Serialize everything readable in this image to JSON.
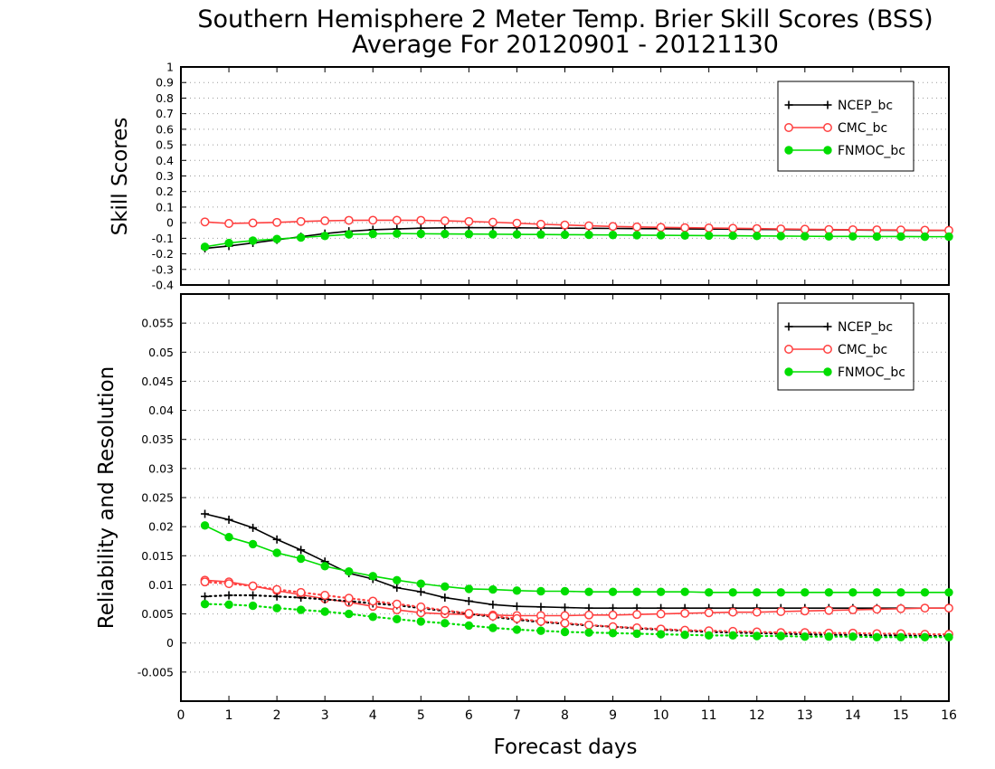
{
  "chart_data": {
    "title": "Southern Hemisphere 2 Meter Temp. Brier Skill Scores (BSS)",
    "subtitle": "Average For 20120901 - 20121130",
    "xlabel": "Forecast days",
    "x_ticks": [
      "0",
      "1",
      "2",
      "3",
      "4",
      "5",
      "6",
      "7",
      "8",
      "9",
      "10",
      "11",
      "12",
      "13",
      "14",
      "15",
      "16"
    ],
    "x": [
      0.5,
      1,
      1.5,
      2,
      2.5,
      3,
      3.5,
      4,
      4.5,
      5,
      5.5,
      6,
      6.5,
      7,
      7.5,
      8,
      8.5,
      9,
      9.5,
      10,
      10.5,
      11,
      11.5,
      12,
      12.5,
      13,
      13.5,
      14,
      14.5,
      15,
      15.5,
      16
    ],
    "xlim": [
      0,
      16
    ],
    "panels": [
      {
        "type": "line",
        "ylabel": "Skill Scores",
        "ylim": [
          -0.4,
          1
        ],
        "y_ticks": [
          "-0.4",
          "-0.3",
          "-0.2",
          "-0.1",
          "0",
          "0.1",
          "0.2",
          "0.3",
          "0.4",
          "0.5",
          "0.6",
          "0.7",
          "0.8",
          "0.9",
          "1"
        ],
        "grid": true,
        "legend_position": "top-right",
        "series": [
          {
            "name": "NCEP_bc",
            "color": "#000000",
            "marker": "plus",
            "values": [
              -0.165,
              -0.15,
              -0.13,
              -0.11,
              -0.09,
              -0.07,
              -0.055,
              -0.045,
              -0.04,
              -0.035,
              -0.033,
              -0.032,
              -0.032,
              -0.033,
              -0.034,
              -0.035,
              -0.036,
              -0.037,
              -0.038,
              -0.039,
              -0.04,
              -0.041,
              -0.042,
              -0.043,
              -0.044,
              -0.045,
              -0.046,
              -0.047,
              -0.048,
              -0.049,
              -0.05,
              -0.05
            ]
          },
          {
            "name": "CMC_bc",
            "color": "#ff4040",
            "marker": "open-circle",
            "values": [
              0.005,
              -0.005,
              -0.002,
              0.002,
              0.008,
              0.012,
              0.015,
              0.016,
              0.016,
              0.015,
              0.012,
              0.008,
              0.003,
              -0.003,
              -0.01,
              -0.015,
              -0.02,
              -0.024,
              -0.027,
              -0.03,
              -0.032,
              -0.034,
              -0.036,
              -0.038,
              -0.04,
              -0.042,
              -0.044,
              -0.045,
              -0.046,
              -0.047,
              -0.048,
              -0.049
            ]
          },
          {
            "name": "FNMOC_bc",
            "color": "#00dd00",
            "marker": "filled-circle",
            "values": [
              -0.155,
              -0.13,
              -0.115,
              -0.105,
              -0.095,
              -0.085,
              -0.075,
              -0.072,
              -0.07,
              -0.071,
              -0.072,
              -0.073,
              -0.074,
              -0.075,
              -0.076,
              -0.077,
              -0.078,
              -0.079,
              -0.08,
              -0.081,
              -0.082,
              -0.083,
              -0.084,
              -0.085,
              -0.086,
              -0.087,
              -0.088,
              -0.088,
              -0.089,
              -0.089,
              -0.09,
              -0.09
            ]
          }
        ]
      },
      {
        "type": "line",
        "ylabel": "Reliability and Resolution",
        "ylim": [
          -0.01,
          0.06
        ],
        "y_ticks": [
          "-0.005",
          "0",
          "0.005",
          "0.01",
          "0.015",
          "0.02",
          "0.025",
          "0.03",
          "0.035",
          "0.04",
          "0.045",
          "0.05",
          "0.055"
        ],
        "grid": true,
        "legend_position": "top-right",
        "series": [
          {
            "name": "NCEP_bc",
            "color": "#000000",
            "marker": "plus",
            "style": "solid",
            "values": [
              0.0222,
              0.0212,
              0.0198,
              0.0178,
              0.016,
              0.014,
              0.012,
              0.011,
              0.0095,
              0.0088,
              0.0078,
              0.0072,
              0.0066,
              0.0063,
              0.0062,
              0.0061,
              0.006,
              0.006,
              0.006,
              0.006,
              0.006,
              0.006,
              0.006,
              0.006,
              0.006,
              0.006,
              0.006,
              0.006,
              0.006,
              0.006,
              0.006,
              0.006
            ]
          },
          {
            "name": "CMC_bc",
            "color": "#ff4040",
            "marker": "open-circle",
            "style": "solid",
            "values": [
              0.0108,
              0.0105,
              0.0098,
              0.009,
              0.0083,
              0.0076,
              0.007,
              0.0063,
              0.0057,
              0.0052,
              0.005,
              0.0049,
              0.0048,
              0.0047,
              0.0047,
              0.0047,
              0.0048,
              0.0048,
              0.0049,
              0.005,
              0.0051,
              0.0052,
              0.0053,
              0.0053,
              0.0054,
              0.0055,
              0.0056,
              0.0057,
              0.0058,
              0.0059,
              0.006,
              0.006
            ]
          },
          {
            "name": "FNMOC_bc",
            "color": "#00dd00",
            "marker": "filled-circle",
            "style": "solid",
            "values": [
              0.0202,
              0.0182,
              0.017,
              0.0155,
              0.0145,
              0.0132,
              0.0123,
              0.0115,
              0.0108,
              0.0102,
              0.0097,
              0.0093,
              0.0092,
              0.009,
              0.0089,
              0.0089,
              0.0088,
              0.0088,
              0.0088,
              0.0088,
              0.0088,
              0.0087,
              0.0087,
              0.0087,
              0.0087,
              0.0087,
              0.0087,
              0.0087,
              0.0087,
              0.0087,
              0.0087,
              0.0087
            ]
          },
          {
            "name": "",
            "color": "#000000",
            "marker": "plus",
            "style": "dotted",
            "values": [
              0.008,
              0.0082,
              0.0082,
              0.008,
              0.0078,
              0.0075,
              0.0072,
              0.0068,
              0.0065,
              0.006,
              0.0055,
              0.005,
              0.0045,
              0.004,
              0.0036,
              0.0033,
              0.003,
              0.0028,
              0.0025,
              0.0023,
              0.0021,
              0.0019,
              0.0018,
              0.0017,
              0.0016,
              0.0015,
              0.0014,
              0.0014,
              0.0013,
              0.0013,
              0.0012,
              0.0012
            ]
          },
          {
            "name": "",
            "color": "#ff4040",
            "marker": "open-circle",
            "style": "dotted",
            "values": [
              0.0105,
              0.0102,
              0.0098,
              0.0092,
              0.0087,
              0.0082,
              0.0077,
              0.0072,
              0.0067,
              0.0062,
              0.0056,
              0.0051,
              0.0046,
              0.0042,
              0.0037,
              0.0034,
              0.0031,
              0.0028,
              0.0026,
              0.0024,
              0.0022,
              0.0021,
              0.002,
              0.0019,
              0.0018,
              0.0018,
              0.0017,
              0.0017,
              0.0016,
              0.0016,
              0.0015,
              0.0015
            ]
          },
          {
            "name": "",
            "color": "#00dd00",
            "marker": "filled-circle",
            "style": "dotted",
            "values": [
              0.0067,
              0.0066,
              0.0064,
              0.006,
              0.0057,
              0.0054,
              0.005,
              0.0045,
              0.0041,
              0.0037,
              0.0034,
              0.003,
              0.0026,
              0.0023,
              0.0021,
              0.0019,
              0.0018,
              0.0017,
              0.0016,
              0.0015,
              0.0014,
              0.0013,
              0.0013,
              0.0012,
              0.0012,
              0.0011,
              0.0011,
              0.0011,
              0.001,
              0.001,
              0.001,
              0.001
            ]
          }
        ]
      }
    ]
  }
}
